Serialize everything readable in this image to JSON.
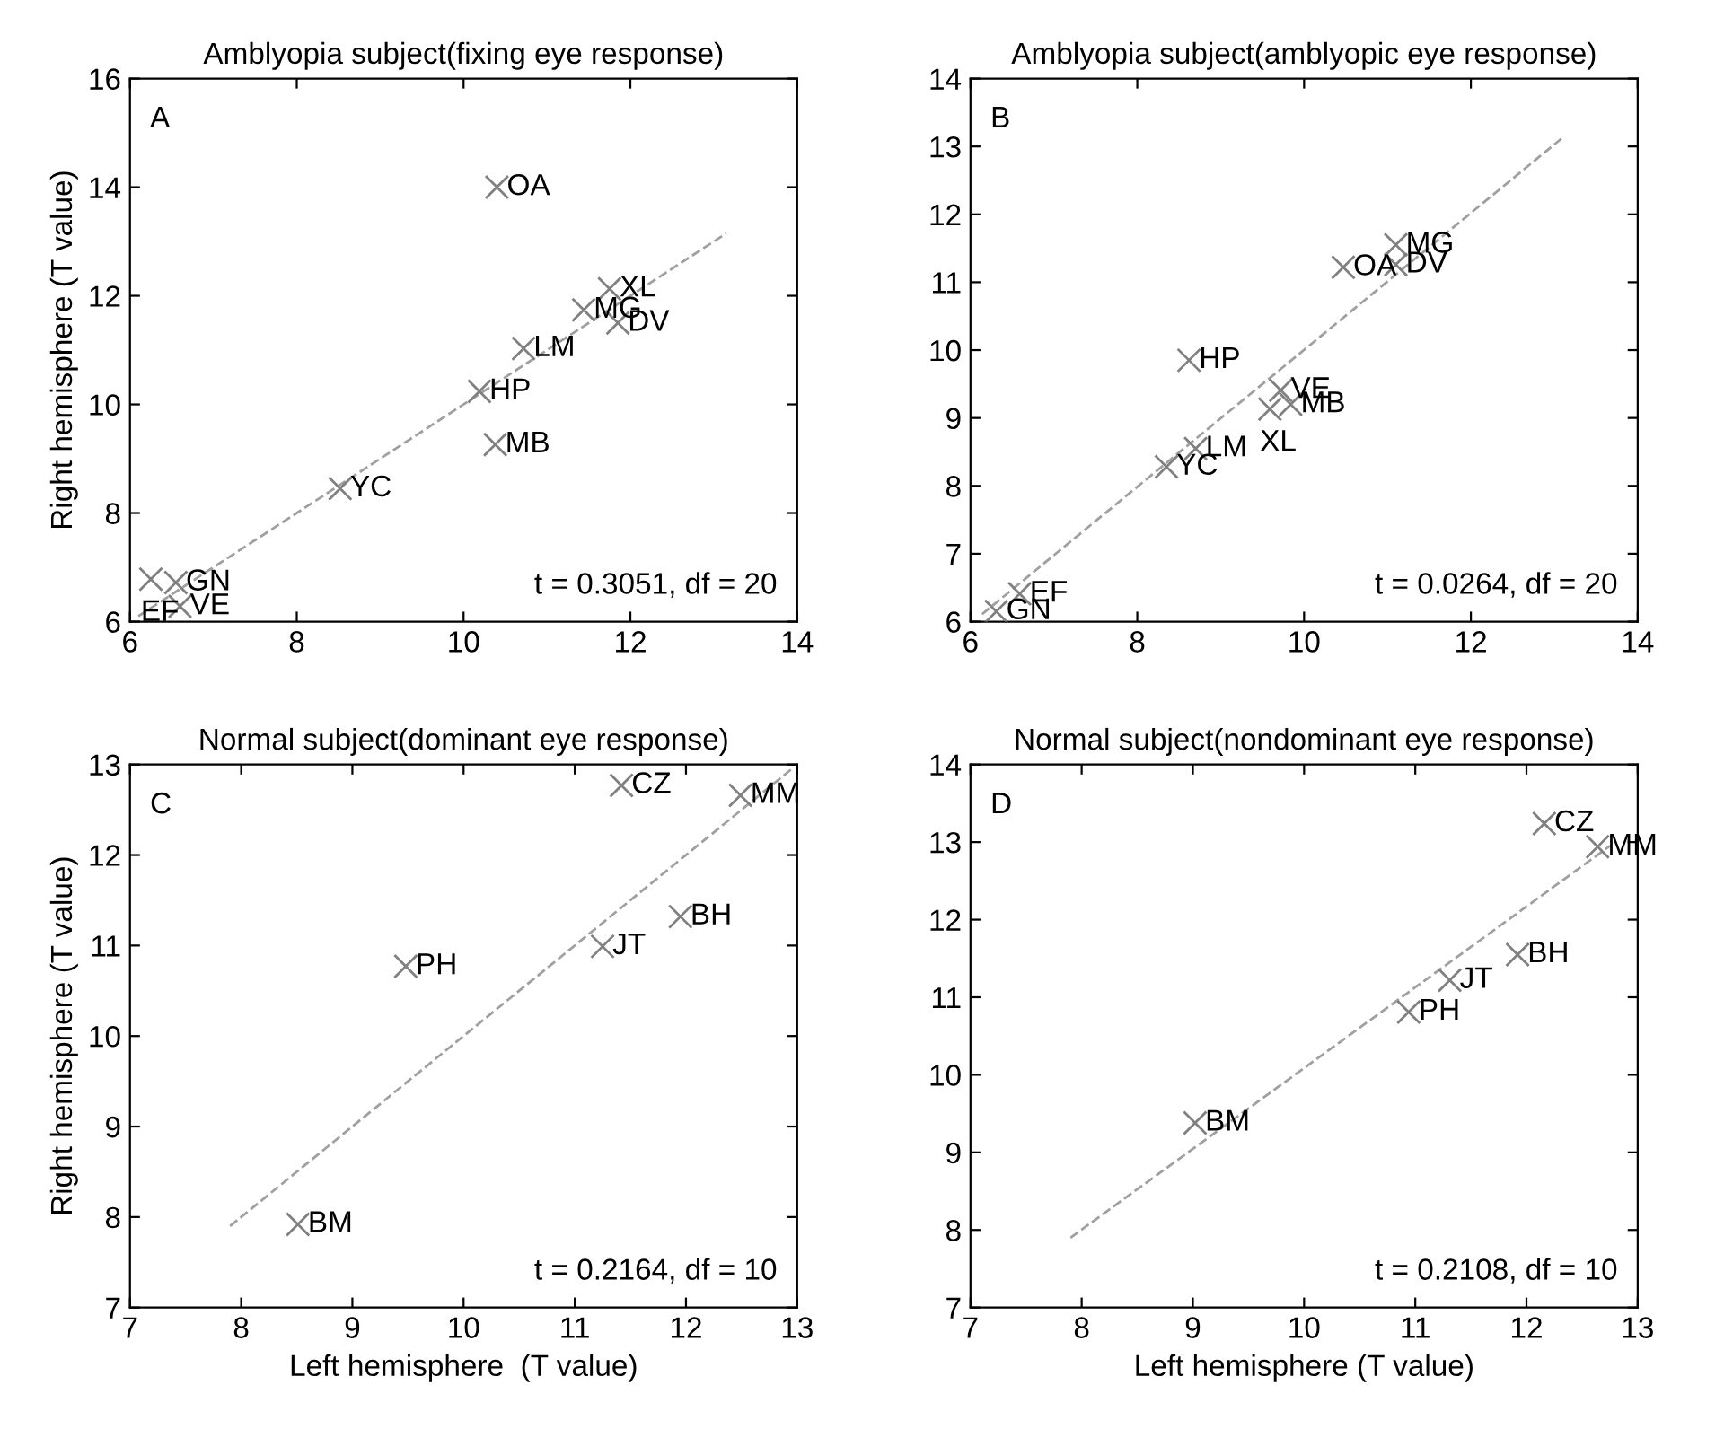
{
  "chart_data": [
    {
      "type": "scatter",
      "title": "Amblyopia subject(fixing eye response)",
      "ylabel": "Right hemisphere (T value)",
      "xlim": [
        6,
        14
      ],
      "ylim": [
        6,
        16
      ],
      "xticks": [
        6,
        8,
        10,
        12,
        14
      ],
      "yticks": [
        6,
        8,
        10,
        12,
        14,
        16
      ],
      "series": [
        {
          "marker": "cross",
          "color": "#808080",
          "x": [
            10.4,
            11.75,
            11.44,
            11.85,
            10.72,
            10.19,
            10.38,
            8.52,
            6.25,
            6.55,
            6.6
          ],
          "values": [
            14.0,
            12.13,
            11.74,
            11.5,
            11.03,
            10.24,
            9.26,
            8.45,
            6.78,
            6.72,
            6.28
          ]
        },
        {
          "type": "line",
          "color": "#a0a0a0",
          "line_style": "dashed",
          "x": [
            6.1,
            13.15
          ],
          "values": [
            6.1,
            13.15
          ]
        }
      ],
      "annotations": [
        "A",
        "t = 0.3051, df = 20",
        {
          "text": "OA",
          "x": 10.4,
          "y": 14.0
        },
        {
          "text": "XL",
          "x": 11.75,
          "y": 12.13
        },
        {
          "text": "MG",
          "x": 11.44,
          "y": 11.74
        },
        {
          "text": "DV",
          "x": 11.85,
          "y": 11.5
        },
        {
          "text": "LM",
          "x": 10.72,
          "y": 11.03
        },
        {
          "text": "HP",
          "x": 10.19,
          "y": 10.24
        },
        {
          "text": "MB",
          "x": 10.38,
          "y": 9.26
        },
        {
          "text": "YC",
          "x": 8.52,
          "y": 8.45
        },
        {
          "text": "EF",
          "x": 6.25,
          "y": 6.78
        },
        {
          "text": "GN",
          "x": 6.55,
          "y": 6.72
        },
        {
          "text": "VE",
          "x": 6.6,
          "y": 6.28
        }
      ]
    },
    {
      "type": "scatter",
      "title": "Amblyopia subject(amblyopic eye response)",
      "xlim": [
        6,
        14
      ],
      "ylim": [
        6,
        14
      ],
      "xticks": [
        6,
        8,
        10,
        12,
        14
      ],
      "yticks": [
        6,
        7,
        8,
        9,
        10,
        11,
        12,
        13,
        14
      ],
      "series": [
        {
          "marker": "cross",
          "color": "#808080",
          "x": [
            11.1,
            11.1,
            10.47,
            8.62,
            9.72,
            9.84,
            9.59,
            8.7,
            8.35,
            6.59,
            6.31
          ],
          "values": [
            11.55,
            11.26,
            11.22,
            9.85,
            9.41,
            9.2,
            9.13,
            8.55,
            8.28,
            6.41,
            6.15
          ]
        },
        {
          "type": "line",
          "color": "#a0a0a0",
          "line_style": "dashed",
          "x": [
            6.14,
            13.12
          ],
          "values": [
            6.11,
            13.15
          ]
        }
      ],
      "annotations": [
        "B",
        "t = 0.0264, df = 20",
        {
          "text": "MG",
          "x": 11.1,
          "y": 11.55
        },
        {
          "text": "DV",
          "x": 11.1,
          "y": 11.26
        },
        {
          "text": "OA",
          "x": 10.47,
          "y": 11.22
        },
        {
          "text": "HP",
          "x": 8.62,
          "y": 9.85
        },
        {
          "text": "VE",
          "x": 9.72,
          "y": 9.41
        },
        {
          "text": "MB",
          "x": 9.84,
          "y": 9.2
        },
        {
          "text": "XL",
          "x": 9.59,
          "y": 9.13
        },
        {
          "text": "LM",
          "x": 8.7,
          "y": 8.55
        },
        {
          "text": "YC",
          "x": 8.35,
          "y": 8.28
        },
        {
          "text": "EF",
          "x": 6.59,
          "y": 6.41
        },
        {
          "text": "GN",
          "x": 6.31,
          "y": 6.15
        }
      ]
    },
    {
      "type": "scatter",
      "title": "Normal subject(dominant eye response)",
      "xlabel": "Left hemisphere  (T value)",
      "ylabel": "Right hemisphere (T value)",
      "xlim": [
        7,
        13
      ],
      "ylim": [
        7,
        13
      ],
      "xticks": [
        7,
        8,
        9,
        10,
        11,
        12,
        13
      ],
      "yticks": [
        7,
        8,
        9,
        10,
        11,
        12,
        13
      ],
      "series": [
        {
          "marker": "cross",
          "color": "#808080",
          "x": [
            11.42,
            12.49,
            11.95,
            11.25,
            9.48,
            8.51
          ],
          "values": [
            12.77,
            12.66,
            11.32,
            10.99,
            10.77,
            7.92
          ]
        },
        {
          "type": "line",
          "color": "#a0a0a0",
          "line_style": "dashed",
          "x": [
            7.9,
            12.95
          ],
          "values": [
            7.9,
            12.95
          ]
        }
      ],
      "annotations": [
        "C",
        "t = 0.2164, df = 10",
        {
          "text": "CZ",
          "x": 11.42,
          "y": 12.77
        },
        {
          "text": "MM",
          "x": 12.49,
          "y": 12.66
        },
        {
          "text": "BH",
          "x": 11.95,
          "y": 11.32
        },
        {
          "text": "JT",
          "x": 11.25,
          "y": 10.99
        },
        {
          "text": "PH",
          "x": 9.48,
          "y": 10.77
        },
        {
          "text": "BM",
          "x": 8.51,
          "y": 7.92
        }
      ]
    },
    {
      "type": "scatter",
      "title": "Normal subject(nondominant eye response)",
      "xlabel": "Left hemisphere (T value)",
      "xlim": [
        7,
        13
      ],
      "ylim": [
        7,
        14
      ],
      "xticks": [
        7,
        8,
        9,
        10,
        11,
        12,
        13
      ],
      "yticks": [
        7,
        8,
        9,
        10,
        11,
        12,
        13,
        14
      ],
      "series": [
        {
          "marker": "cross",
          "color": "#808080",
          "x": [
            12.16,
            12.64,
            11.92,
            11.31,
            10.94,
            9.02
          ],
          "values": [
            13.24,
            12.94,
            11.55,
            11.22,
            10.81,
            9.38
          ]
        },
        {
          "type": "line",
          "color": "#a0a0a0",
          "line_style": "dashed",
          "x": [
            7.9,
            12.75
          ],
          "values": [
            7.9,
            12.95
          ]
        }
      ],
      "annotations": [
        "D",
        "t = 0.2108, df = 10",
        {
          "text": "CZ",
          "x": 12.16,
          "y": 13.24
        },
        {
          "text": "MM",
          "x": 12.64,
          "y": 12.94
        },
        {
          "text": "BH",
          "x": 11.92,
          "y": 11.55
        },
        {
          "text": "JT",
          "x": 11.31,
          "y": 11.22
        },
        {
          "text": "PH",
          "x": 10.94,
          "y": 10.81
        },
        {
          "text": "BM",
          "x": 9.02,
          "y": 9.38
        }
      ]
    }
  ]
}
